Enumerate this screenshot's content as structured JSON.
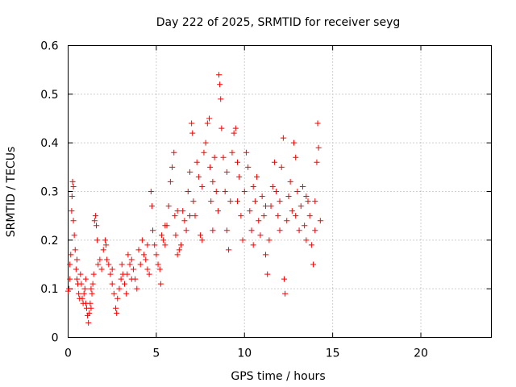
{
  "chart_data": {
    "type": "scatter",
    "title": "Day 222 of 2025, SRMTID for receiver seyg",
    "xlabel": "GPS time / hours",
    "ylabel": "SRMTID / TECUs",
    "xlim": [
      0,
      24
    ],
    "ylim": [
      0,
      0.6
    ],
    "xticks": [
      0,
      5,
      10,
      15,
      20
    ],
    "xtick_labels": [
      "0",
      "5",
      "10",
      "15",
      "20"
    ],
    "yticks": [
      0,
      0.1,
      0.2,
      0.3,
      0.4,
      0.5,
      0.6
    ],
    "ytick_labels": [
      "0",
      "0.1",
      "0.2",
      "0.3",
      "0.4",
      "0.5",
      "0.6"
    ],
    "grid": true,
    "marker": "+",
    "color": "#ff0000",
    "series": [
      {
        "name": "SRMTID",
        "points": [
          [
            0.0,
            0.095
          ],
          [
            0.05,
            0.1
          ],
          [
            0.1,
            0.15
          ],
          [
            0.15,
            0.17
          ],
          [
            0.2,
            0.26
          ],
          [
            0.22,
            0.29
          ],
          [
            0.25,
            0.32
          ],
          [
            0.3,
            0.31
          ],
          [
            0.3,
            0.24
          ],
          [
            0.35,
            0.21
          ],
          [
            0.4,
            0.18
          ],
          [
            0.45,
            0.14
          ],
          [
            0.5,
            0.12
          ],
          [
            0.55,
            0.11
          ],
          [
            0.6,
            0.09
          ],
          [
            0.65,
            0.08
          ],
          [
            0.7,
            0.13
          ],
          [
            0.75,
            0.11
          ],
          [
            0.8,
            0.08
          ],
          [
            0.85,
            0.07
          ],
          [
            0.9,
            0.09
          ],
          [
            0.95,
            0.1
          ],
          [
            1.0,
            0.07
          ],
          [
            1.05,
            0.06
          ],
          [
            1.1,
            0.045
          ],
          [
            1.15,
            0.03
          ],
          [
            1.2,
            0.05
          ],
          [
            1.25,
            0.07
          ],
          [
            1.3,
            0.06
          ],
          [
            1.35,
            0.09
          ],
          [
            1.4,
            0.11
          ],
          [
            1.45,
            0.13
          ],
          [
            1.5,
            0.24
          ],
          [
            1.55,
            0.25
          ],
          [
            1.6,
            0.23
          ],
          [
            1.65,
            0.2
          ],
          [
            1.7,
            0.15
          ],
          [
            1.8,
            0.16
          ],
          [
            1.9,
            0.14
          ],
          [
            2.0,
            0.18
          ],
          [
            2.1,
            0.2
          ],
          [
            2.15,
            0.19
          ],
          [
            2.2,
            0.16
          ],
          [
            2.3,
            0.15
          ],
          [
            2.4,
            0.13
          ],
          [
            2.5,
            0.11
          ],
          [
            2.6,
            0.09
          ],
          [
            2.7,
            0.06
          ],
          [
            2.75,
            0.05
          ],
          [
            2.8,
            0.08
          ],
          [
            2.9,
            0.1
          ],
          [
            3.0,
            0.12
          ],
          [
            3.05,
            0.15
          ],
          [
            3.1,
            0.13
          ],
          [
            3.2,
            0.11
          ],
          [
            3.3,
            0.09
          ],
          [
            3.35,
            0.13
          ],
          [
            3.4,
            0.17
          ],
          [
            3.5,
            0.15
          ],
          [
            3.6,
            0.16
          ],
          [
            3.7,
            0.14
          ],
          [
            3.8,
            0.12
          ],
          [
            3.9,
            0.1
          ],
          [
            4.0,
            0.18
          ],
          [
            4.1,
            0.15
          ],
          [
            4.2,
            0.2
          ],
          [
            4.3,
            0.17
          ],
          [
            4.4,
            0.16
          ],
          [
            4.5,
            0.14
          ],
          [
            4.6,
            0.13
          ],
          [
            4.7,
            0.3
          ],
          [
            4.75,
            0.27
          ],
          [
            4.8,
            0.22
          ],
          [
            4.9,
            0.19
          ],
          [
            5.0,
            0.17
          ],
          [
            5.1,
            0.15
          ],
          [
            5.2,
            0.14
          ],
          [
            5.25,
            0.11
          ],
          [
            5.3,
            0.21
          ],
          [
            5.4,
            0.2
          ],
          [
            5.5,
            0.19
          ],
          [
            5.6,
            0.23
          ],
          [
            5.7,
            0.27
          ],
          [
            5.8,
            0.32
          ],
          [
            5.9,
            0.35
          ],
          [
            6.0,
            0.38
          ],
          [
            6.05,
            0.25
          ],
          [
            6.1,
            0.21
          ],
          [
            6.2,
            0.17
          ],
          [
            6.3,
            0.18
          ],
          [
            6.4,
            0.19
          ],
          [
            6.5,
            0.26
          ],
          [
            6.6,
            0.24
          ],
          [
            6.7,
            0.22
          ],
          [
            6.8,
            0.3
          ],
          [
            6.9,
            0.34
          ],
          [
            7.0,
            0.44
          ],
          [
            7.05,
            0.42
          ],
          [
            7.1,
            0.28
          ],
          [
            7.2,
            0.25
          ],
          [
            7.3,
            0.36
          ],
          [
            7.4,
            0.33
          ],
          [
            7.5,
            0.21
          ],
          [
            7.6,
            0.2
          ],
          [
            7.7,
            0.38
          ],
          [
            7.8,
            0.4
          ],
          [
            7.9,
            0.44
          ],
          [
            8.0,
            0.45
          ],
          [
            8.05,
            0.35
          ],
          [
            8.1,
            0.28
          ],
          [
            8.2,
            0.32
          ],
          [
            8.3,
            0.37
          ],
          [
            8.4,
            0.3
          ],
          [
            8.5,
            0.26
          ],
          [
            8.55,
            0.54
          ],
          [
            8.6,
            0.52
          ],
          [
            8.65,
            0.49
          ],
          [
            8.7,
            0.43
          ],
          [
            8.8,
            0.37
          ],
          [
            8.9,
            0.3
          ],
          [
            9.0,
            0.22
          ],
          [
            9.1,
            0.18
          ],
          [
            9.2,
            0.28
          ],
          [
            9.3,
            0.38
          ],
          [
            9.4,
            0.42
          ],
          [
            9.5,
            0.43
          ],
          [
            9.6,
            0.36
          ],
          [
            9.7,
            0.33
          ],
          [
            9.8,
            0.25
          ],
          [
            9.9,
            0.2
          ],
          [
            10.0,
            0.3
          ],
          [
            10.1,
            0.38
          ],
          [
            10.2,
            0.35
          ],
          [
            10.3,
            0.26
          ],
          [
            10.4,
            0.22
          ],
          [
            10.5,
            0.19
          ],
          [
            10.6,
            0.28
          ],
          [
            10.7,
            0.33
          ],
          [
            10.8,
            0.24
          ],
          [
            10.9,
            0.21
          ],
          [
            11.0,
            0.29
          ],
          [
            11.1,
            0.25
          ],
          [
            11.2,
            0.17
          ],
          [
            11.3,
            0.13
          ],
          [
            11.4,
            0.2
          ],
          [
            11.5,
            0.27
          ],
          [
            11.6,
            0.31
          ],
          [
            11.7,
            0.36
          ],
          [
            11.8,
            0.3
          ],
          [
            11.9,
            0.25
          ],
          [
            12.0,
            0.28
          ],
          [
            12.1,
            0.35
          ],
          [
            12.2,
            0.41
          ],
          [
            12.25,
            0.12
          ],
          [
            12.3,
            0.09
          ],
          [
            12.4,
            0.24
          ],
          [
            12.5,
            0.29
          ],
          [
            12.6,
            0.32
          ],
          [
            12.7,
            0.26
          ],
          [
            12.8,
            0.4
          ],
          [
            12.9,
            0.37
          ],
          [
            13.0,
            0.3
          ],
          [
            13.1,
            0.22
          ],
          [
            13.2,
            0.27
          ],
          [
            13.3,
            0.31
          ],
          [
            13.4,
            0.23
          ],
          [
            13.5,
            0.2
          ],
          [
            13.6,
            0.28
          ],
          [
            13.7,
            0.25
          ],
          [
            13.8,
            0.19
          ],
          [
            13.9,
            0.15
          ],
          [
            14.0,
            0.22
          ],
          [
            14.1,
            0.36
          ],
          [
            14.15,
            0.44
          ],
          [
            14.2,
            0.39
          ],
          [
            14.3,
            0.24
          ],
          [
            0.1,
            0.12
          ],
          [
            0.5,
            0.16
          ],
          [
            1.0,
            0.12
          ],
          [
            1.3,
            0.1
          ],
          [
            2.5,
            0.14
          ],
          [
            3.6,
            0.12
          ],
          [
            4.5,
            0.19
          ],
          [
            5.5,
            0.23
          ],
          [
            6.2,
            0.26
          ],
          [
            6.9,
            0.25
          ],
          [
            7.6,
            0.31
          ],
          [
            8.2,
            0.22
          ],
          [
            9.0,
            0.34
          ],
          [
            9.6,
            0.28
          ],
          [
            10.5,
            0.31
          ],
          [
            11.2,
            0.27
          ],
          [
            12.0,
            0.22
          ],
          [
            12.9,
            0.25
          ],
          [
            13.5,
            0.29
          ],
          [
            14.0,
            0.28
          ]
        ]
      }
    ]
  }
}
